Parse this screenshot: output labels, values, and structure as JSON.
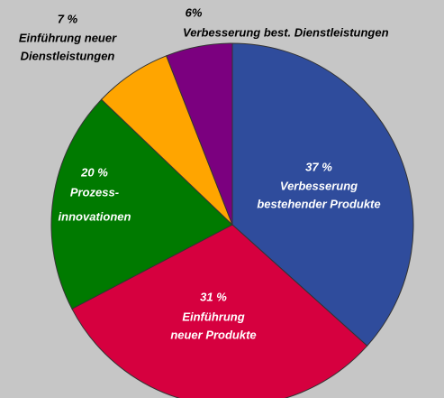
{
  "chart_data": {
    "type": "pie",
    "categories": [
      [
        "Verbesserung",
        "bestehender Produkte"
      ],
      [
        "Einführung",
        "neuer Produkte"
      ],
      [
        "Prozess-",
        "innovationen"
      ],
      [
        "Einführung neuer",
        "Dienstleistungen"
      ],
      [
        "Verbesserung best. Dienstleistungen"
      ]
    ],
    "values": [
      37,
      31,
      20,
      7,
      6
    ],
    "value_labels": [
      "37 %",
      "31 %",
      "20 %",
      "7 %",
      "6%"
    ],
    "colors": [
      "#2f4c9c",
      "#d6003f",
      "#007a00",
      "#ffa500",
      "#7b007f"
    ]
  }
}
